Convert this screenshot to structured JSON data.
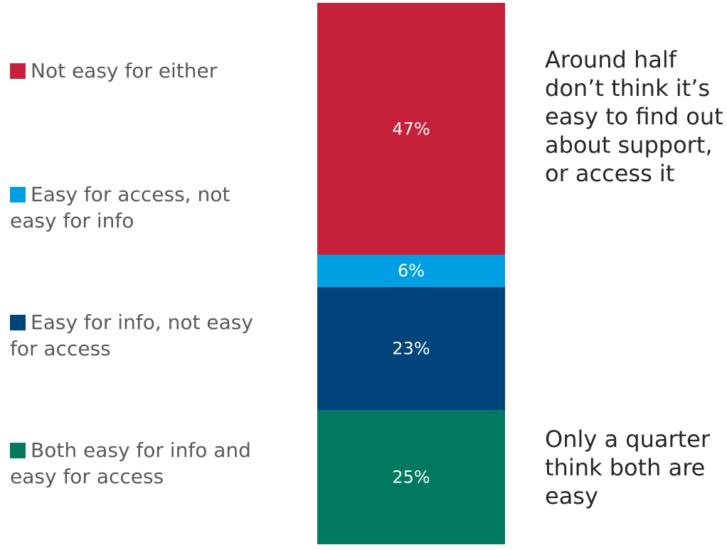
{
  "chart_data": {
    "type": "bar",
    "stacked": true,
    "orientation": "vertical",
    "categories": [
      ""
    ],
    "series": [
      {
        "name": "Both easy for info and easy for access",
        "values": [
          25
        ],
        "label": "25%",
        "color": "#00795f"
      },
      {
        "name": "Easy for info, not easy for access",
        "values": [
          23
        ],
        "label": "23%",
        "color": "#00447c"
      },
      {
        "name": "Easy for access, not easy for info",
        "values": [
          6
        ],
        "label": "6%",
        "color": "#009fe3"
      },
      {
        "name": "Not easy for either",
        "values": [
          47
        ],
        "label": "47%",
        "color": "#c6203b"
      }
    ],
    "ylim": [
      0,
      101
    ],
    "grid": false,
    "legend_placement": "left",
    "title": "",
    "xlabel": "",
    "ylabel": ""
  },
  "legend": [
    {
      "label": "Not easy for either",
      "color": "#c6203b"
    },
    {
      "label": "Easy for access, not easy for info",
      "color": "#009fe3"
    },
    {
      "label": "Easy for info, not easy for access",
      "color": "#00447c"
    },
    {
      "label": "Both easy for info and easy for access",
      "color": "#00795f"
    }
  ],
  "annotations": {
    "top": "Around half don’t think it’s easy to find out about support, or access it",
    "bottom": "Only a quarter think both are easy"
  }
}
